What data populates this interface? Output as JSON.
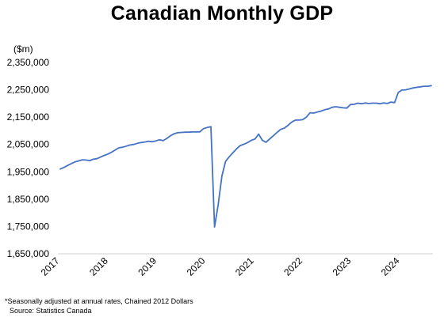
{
  "chart_data": {
    "type": "line",
    "title": "Canadian Monthly GDP",
    "unit_label": "($m)",
    "footnote": "*Seasonally adjusted at annual rates, Chained 2012 Dollars",
    "source": "Source: Statistics Canada",
    "line_color": "#4472c4",
    "grid": false,
    "ylim": [
      1650000,
      2350000
    ],
    "y_ticks": [
      "1,650,000",
      "1,750,000",
      "1,850,000",
      "1,950,000",
      "2,050,000",
      "2,150,000",
      "2,250,000",
      "2,350,000"
    ],
    "x_ticks": [
      "2017",
      "2018",
      "2019",
      "2020",
      "2021",
      "2022",
      "2023",
      "2024"
    ],
    "x_start": "2017-01",
    "series": [
      {
        "values": [
          1960000,
          1966000,
          1973000,
          1980000,
          1986000,
          1990000,
          1994000,
          1993000,
          1991000,
          1996000,
          1998000,
          2004000,
          2010000,
          2015000,
          2022000,
          2030000,
          2038000,
          2040000,
          2044000,
          2048000,
          2050000,
          2054000,
          2057000,
          2059000,
          2062000,
          2060000,
          2063000,
          2067000,
          2064000,
          2072000,
          2082000,
          2089000,
          2093000,
          2094000,
          2095000,
          2095000,
          2096000,
          2096000,
          2096000,
          2108000,
          2112000,
          2115000,
          1748000,
          1830000,
          1935000,
          1988000,
          2005000,
          2020000,
          2034000,
          2046000,
          2051000,
          2057000,
          2065000,
          2070000,
          2088000,
          2065000,
          2058000,
          2070000,
          2082000,
          2094000,
          2105000,
          2110000,
          2120000,
          2132000,
          2139000,
          2139000,
          2141000,
          2150000,
          2166000,
          2165000,
          2169000,
          2172000,
          2177000,
          2180000,
          2186000,
          2188000,
          2186000,
          2184000,
          2183000,
          2196000,
          2197000,
          2201000,
          2199000,
          2202000,
          2200000,
          2201000,
          2201000,
          2199000,
          2202000,
          2200000,
          2205000,
          2203000,
          2240000,
          2249000,
          2250000,
          2253000,
          2257000,
          2259000,
          2261000,
          2263000,
          2263000,
          2265000
        ]
      }
    ]
  }
}
